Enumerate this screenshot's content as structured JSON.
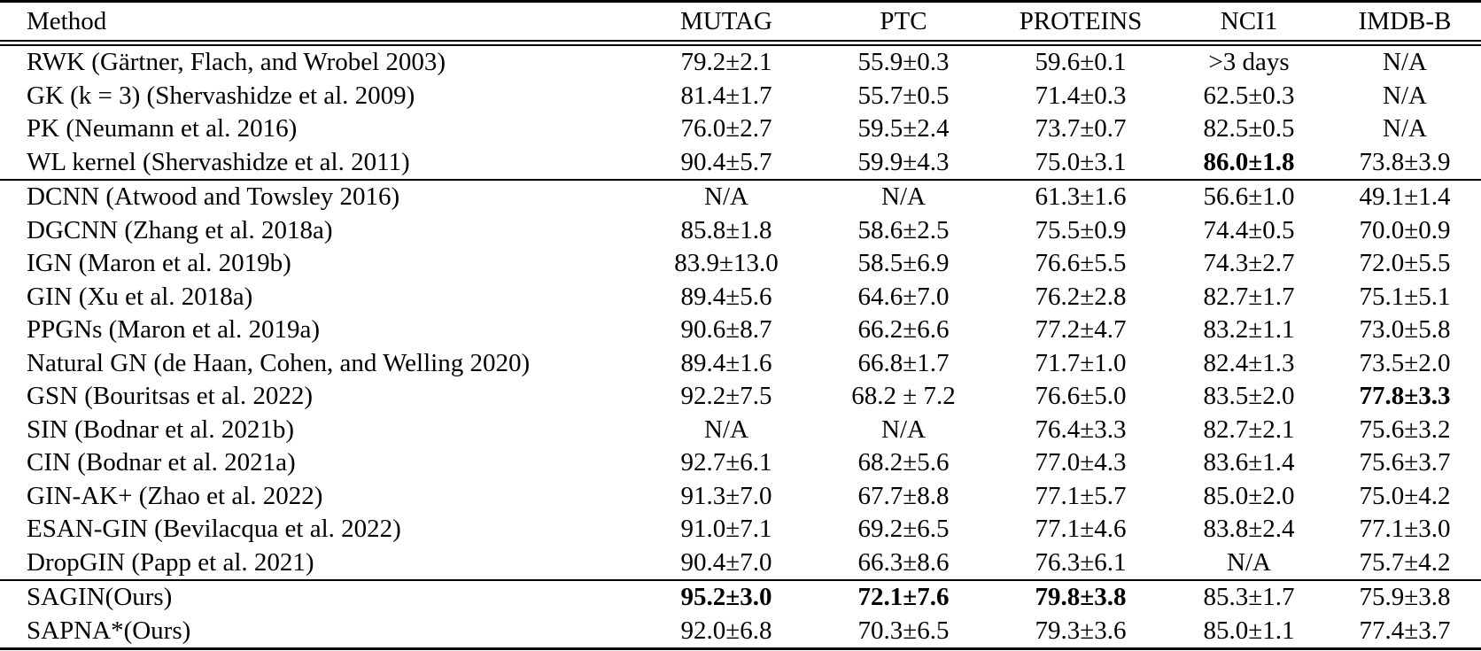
{
  "colors": {
    "background": "#ffffff",
    "text": "#000000",
    "rule": "#000000"
  },
  "table": {
    "columns": [
      "Method",
      "MUTAG",
      "PTC",
      "PROTEINS",
      "NCI1",
      "IMDB-B"
    ],
    "sections": [
      {
        "name": "graph-kernel-methods",
        "rows": [
          {
            "method": "RWK (Gärtner, Flach, and Wrobel 2003)",
            "cells": [
              "79.2±2.1",
              "55.9±0.3",
              "59.6±0.1",
              ">3 days",
              "N/A"
            ],
            "bold": []
          },
          {
            "method": "GK (k = 3) (Shervashidze et al. 2009)",
            "cells": [
              "81.4±1.7",
              "55.7±0.5",
              "71.4±0.3",
              "62.5±0.3",
              "N/A"
            ],
            "bold": []
          },
          {
            "method": "PK (Neumann et al. 2016)",
            "cells": [
              "76.0±2.7",
              "59.5±2.4",
              "73.7±0.7",
              "82.5±0.5",
              "N/A"
            ],
            "bold": []
          },
          {
            "method": "WL kernel (Shervashidze et al. 2011)",
            "cells": [
              "90.4±5.7",
              "59.9±4.3",
              "75.0±3.1",
              "86.0±1.8",
              "73.8±3.9"
            ],
            "bold": [
              3
            ]
          }
        ]
      },
      {
        "name": "gnn-methods",
        "rows": [
          {
            "method": "DCNN (Atwood and Towsley 2016)",
            "cells": [
              "N/A",
              "N/A",
              "61.3±1.6",
              "56.6±1.0",
              "49.1±1.4"
            ],
            "bold": []
          },
          {
            "method": "DGCNN (Zhang et al. 2018a)",
            "cells": [
              "85.8±1.8",
              "58.6±2.5",
              "75.5±0.9",
              "74.4±0.5",
              "70.0±0.9"
            ],
            "bold": []
          },
          {
            "method": "IGN (Maron et al. 2019b)",
            "cells": [
              "83.9±13.0",
              "58.5±6.9",
              "76.6±5.5",
              "74.3±2.7",
              "72.0±5.5"
            ],
            "bold": []
          },
          {
            "method": "GIN (Xu et al. 2018a)",
            "cells": [
              "89.4±5.6",
              "64.6±7.0",
              "76.2±2.8",
              "82.7±1.7",
              "75.1±5.1"
            ],
            "bold": []
          },
          {
            "method": "PPGNs (Maron et al. 2019a)",
            "cells": [
              "90.6±8.7",
              "66.2±6.6",
              "77.2±4.7",
              "83.2±1.1",
              "73.0±5.8"
            ],
            "bold": []
          },
          {
            "method": "Natural GN (de Haan, Cohen, and Welling 2020)",
            "cells": [
              "89.4±1.6",
              "66.8±1.7",
              "71.7±1.0",
              "82.4±1.3",
              "73.5±2.0"
            ],
            "bold": []
          },
          {
            "method": "GSN (Bouritsas et al. 2022)",
            "cells": [
              "92.2±7.5",
              "68.2 ± 7.2",
              "76.6±5.0",
              "83.5±2.0",
              "77.8±3.3"
            ],
            "bold": [
              4
            ]
          },
          {
            "method": "SIN (Bodnar et al. 2021b)",
            "cells": [
              "N/A",
              "N/A",
              "76.4±3.3",
              "82.7±2.1",
              "75.6±3.2"
            ],
            "bold": []
          },
          {
            "method": "CIN (Bodnar et al. 2021a)",
            "cells": [
              "92.7±6.1",
              "68.2±5.6",
              "77.0±4.3",
              "83.6±1.4",
              "75.6±3.7"
            ],
            "bold": []
          },
          {
            "method": "GIN-AK+ (Zhao et al. 2022)",
            "cells": [
              "91.3±7.0",
              "67.7±8.8",
              "77.1±5.7",
              "85.0±2.0",
              "75.0±4.2"
            ],
            "bold": []
          },
          {
            "method": "ESAN-GIN (Bevilacqua et al. 2022)",
            "cells": [
              "91.0±7.1",
              "69.2±6.5",
              "77.1±4.6",
              "83.8±2.4",
              "77.1±3.0"
            ],
            "bold": []
          },
          {
            "method": "DropGIN (Papp et al. 2021)",
            "cells": [
              "90.4±7.0",
              "66.3±8.6",
              "76.3±6.1",
              "N/A",
              "75.7±4.2"
            ],
            "bold": []
          }
        ]
      },
      {
        "name": "our-methods",
        "rows": [
          {
            "method": "SAGIN(Ours)",
            "cells": [
              "95.2±3.0",
              "72.1±7.6",
              "79.8±3.8",
              "85.3±1.7",
              "75.9±3.8"
            ],
            "bold": [
              0,
              1,
              2
            ]
          },
          {
            "method": "SAPNA*(Ours)",
            "cells": [
              "92.0±6.8",
              "70.3±6.5",
              "79.3±3.6",
              "85.0±1.1",
              "77.4±3.7"
            ],
            "bold": []
          }
        ]
      }
    ]
  }
}
